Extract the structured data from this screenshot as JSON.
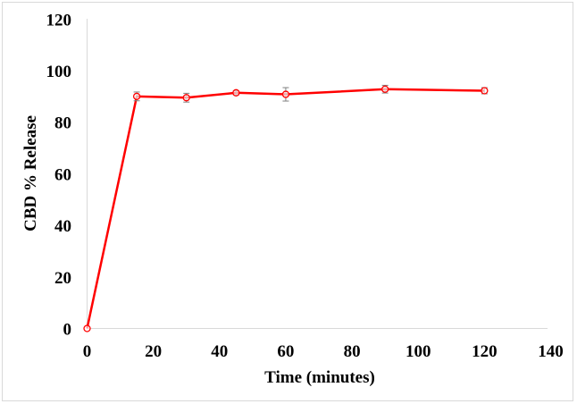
{
  "chart_data": {
    "type": "line",
    "title": "",
    "xlabel": "Time (minutes)",
    "ylabel": "CBD % Release",
    "xlim": [
      0,
      140
    ],
    "ylim": [
      0,
      120
    ],
    "x_ticks": [
      0,
      20,
      40,
      60,
      80,
      100,
      120,
      140
    ],
    "y_ticks": [
      0,
      20,
      40,
      60,
      80,
      100,
      120
    ],
    "grid": false,
    "legend": null,
    "series": [
      {
        "name": "CBD % Release",
        "color": "#ff0000",
        "marker": "circle-open",
        "x": [
          0,
          15,
          30,
          45,
          60,
          90,
          120
        ],
        "y": [
          0,
          90.0,
          89.5,
          91.4,
          90.8,
          92.8,
          92.2
        ],
        "error": [
          0,
          1.7,
          1.7,
          0.8,
          2.6,
          1.5,
          1.2
        ]
      }
    ]
  },
  "labels": {
    "x_axis_title": "Time (minutes)",
    "y_axis_title": "CBD % Release",
    "x_tick_labels": [
      "0",
      "20",
      "40",
      "60",
      "80",
      "100",
      "120",
      "140"
    ],
    "y_tick_labels": [
      "0",
      "20",
      "40",
      "60",
      "80",
      "100",
      "120"
    ]
  }
}
